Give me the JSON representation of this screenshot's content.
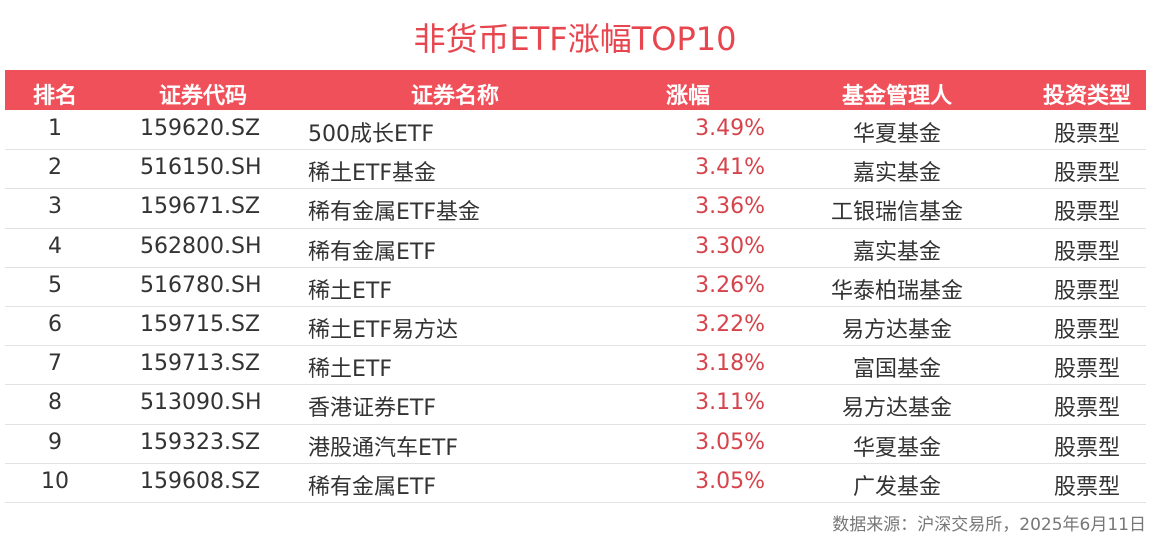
{
  "title": "非货币ETF涨幅TOP10",
  "table": {
    "header": [
      "排名",
      "证券代码",
      "证券名称",
      "涨幅",
      "基金管理人",
      "投资类型"
    ],
    "rows": [
      [
        "1",
        "159620.SZ",
        "500成长ETF",
        "3.49%",
        "华夏基金",
        "股票型"
      ],
      [
        "2",
        "516150.SH",
        "稀土ETF基金",
        "3.41%",
        "嘉实基金",
        "股票型"
      ],
      [
        "3",
        "159671.SZ",
        "稀有金属ETF基金",
        "3.36%",
        "工银瑞信基金",
        "股票型"
      ],
      [
        "4",
        "562800.SH",
        "稀有金属ETF",
        "3.30%",
        "嘉实基金",
        "股票型"
      ],
      [
        "5",
        "516780.SH",
        "稀土ETF",
        "3.26%",
        "华泰柏瑞基金",
        "股票型"
      ],
      [
        "6",
        "159715.SZ",
        "稀土ETF易方达",
        "3.22%",
        "易方达基金",
        "股票型"
      ],
      [
        "7",
        "159713.SZ",
        "稀土ETF",
        "3.18%",
        "富国基金",
        "股票型"
      ],
      [
        "8",
        "513090.SH",
        "香港证券ETF",
        "3.11%",
        "易方达基金",
        "股票型"
      ],
      [
        "9",
        "159323.SZ",
        "港股通汽车ETF",
        "3.05%",
        "华夏基金",
        "股票型"
      ],
      [
        "10",
        "159608.SZ",
        "稀有金属ETF",
        "3.05%",
        "广发基金",
        "股票型"
      ]
    ]
  },
  "source": "数据来源：沪深交易所，2025年6月11日"
}
